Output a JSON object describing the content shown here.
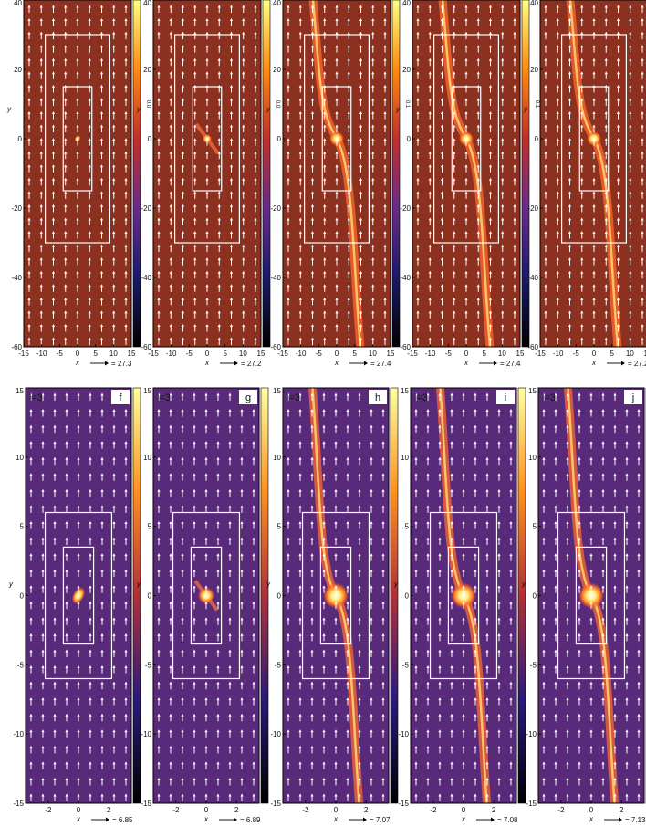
{
  "chart_data": [
    {
      "type": "heatmap",
      "row": "top",
      "ylabel": "y",
      "xlabel": "x",
      "xlim": [
        -15,
        15
      ],
      "ylim": [
        -60,
        40
      ],
      "xticks": [
        "-15",
        "-10",
        "-5",
        "0",
        "5",
        "10",
        "15"
      ],
      "yticks": [
        "-60",
        "-40",
        "-20",
        "0",
        "20",
        "40"
      ],
      "panels": [
        {
          "id": "a",
          "label": "",
          "arrow_scale": "27.3",
          "cb_tick": "0.0",
          "variant": "spot"
        },
        {
          "id": "b",
          "label": "",
          "arrow_scale": "27.2",
          "cb_tick": "0.0",
          "variant": "weak"
        },
        {
          "id": "c",
          "label": "",
          "arrow_scale": "27.4",
          "cb_tick": "0.1",
          "variant": "spiral"
        },
        {
          "id": "d",
          "label": "",
          "arrow_scale": "27.4",
          "cb_tick": "0.1",
          "variant": "spiral"
        },
        {
          "id": "e",
          "label": "",
          "arrow_scale": "27.2",
          "cb_tick": "0.1",
          "variant": "spiral"
        }
      ]
    },
    {
      "type": "heatmap",
      "row": "bottom",
      "ylabel": "y",
      "xlabel": "x",
      "xlim": [
        -3.5,
        3.5
      ],
      "ylim": [
        -15,
        15
      ],
      "xticks": [
        "-2",
        "0",
        "2"
      ],
      "yticks": [
        "-15",
        "-10",
        "-5",
        "0",
        "5",
        "10",
        "15"
      ],
      "panels": [
        {
          "id": "f",
          "label": "f",
          "tag": "l=3",
          "arrow_scale": "6.85",
          "variant": "spot"
        },
        {
          "id": "g",
          "label": "g",
          "tag": "l=3",
          "arrow_scale": "6.89",
          "variant": "weak"
        },
        {
          "id": "h",
          "label": "h",
          "tag": "l=3",
          "arrow_scale": "7.07",
          "variant": "spiral"
        },
        {
          "id": "i",
          "label": "i",
          "tag": "l=3",
          "arrow_scale": "7.08",
          "variant": "spiral"
        },
        {
          "id": "j",
          "label": "j",
          "tag": "l=3",
          "arrow_scale": "7.13",
          "variant": "spiral"
        }
      ]
    }
  ],
  "colors": {
    "top_background": "#8c3020",
    "bottom_background": "#5a2a7a",
    "arrows": "#ffffff",
    "boxes": "#ffffff"
  }
}
